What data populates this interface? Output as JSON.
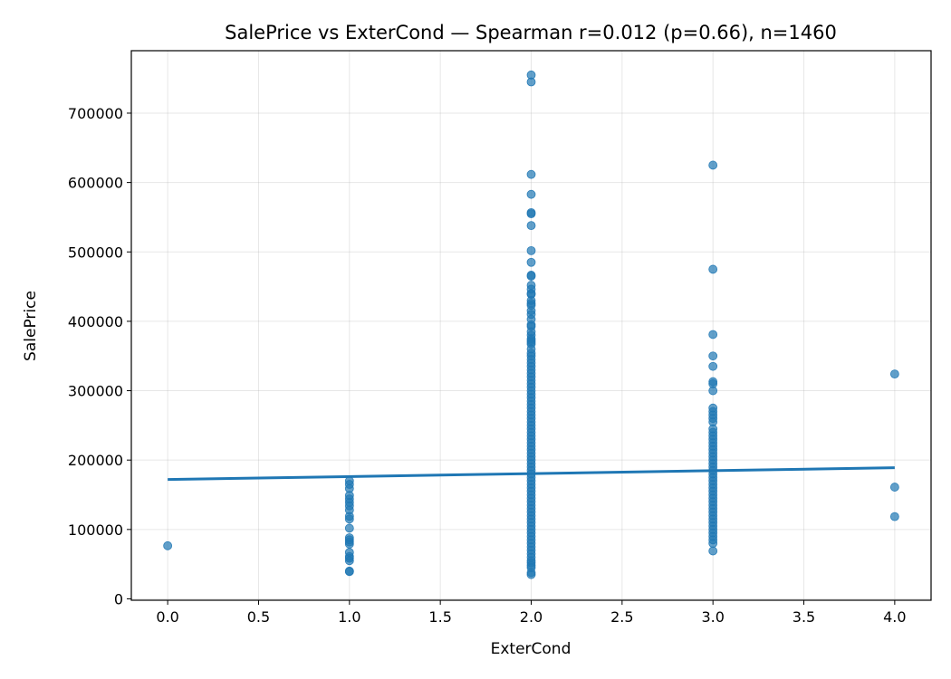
{
  "chart_data": {
    "type": "scatter",
    "title": "SalePrice vs ExterCond — Spearman r=0.012 (p=0.66), n=1460",
    "xlabel": "ExterCond",
    "ylabel": "SalePrice",
    "xlim": [
      -0.2,
      4.2
    ],
    "ylim": [
      -2000,
      790000
    ],
    "xticks": [
      0.0,
      0.5,
      1.0,
      1.5,
      2.0,
      2.5,
      3.0,
      3.5,
      4.0
    ],
    "xtick_labels": [
      "0.0",
      "0.5",
      "1.0",
      "1.5",
      "2.0",
      "2.5",
      "3.0",
      "3.5",
      "4.0"
    ],
    "yticks": [
      0,
      100000,
      200000,
      300000,
      400000,
      500000,
      600000,
      700000
    ],
    "ytick_labels": [
      "0",
      "100000",
      "200000",
      "300000",
      "400000",
      "500000",
      "600000",
      "700000"
    ],
    "grid": true,
    "point_color": "#1f77b4",
    "line_color": "#1f77b4",
    "series": [
      {
        "values": [
          {
            "x": 0,
            "y": 76500
          },
          {
            "x": 1,
            "y": 39300
          },
          {
            "x": 1,
            "y": 40000
          },
          {
            "x": 1,
            "y": 55000
          },
          {
            "x": 1,
            "y": 58500
          },
          {
            "x": 1,
            "y": 61000
          },
          {
            "x": 1,
            "y": 67000
          },
          {
            "x": 1,
            "y": 79000
          },
          {
            "x": 1,
            "y": 82000
          },
          {
            "x": 1,
            "y": 85000
          },
          {
            "x": 1,
            "y": 88000
          },
          {
            "x": 1,
            "y": 101800
          },
          {
            "x": 1,
            "y": 115000
          },
          {
            "x": 1,
            "y": 119000
          },
          {
            "x": 1,
            "y": 128000
          },
          {
            "x": 1,
            "y": 134000
          },
          {
            "x": 1,
            "y": 139000
          },
          {
            "x": 1,
            "y": 144000
          },
          {
            "x": 1,
            "y": 149000
          },
          {
            "x": 1,
            "y": 159000
          },
          {
            "x": 1,
            "y": 165000
          },
          {
            "x": 1,
            "y": 170000
          },
          {
            "x": 2,
            "y": 34900
          },
          {
            "x": 2,
            "y": 37900
          },
          {
            "x": 2,
            "y": 755000
          },
          {
            "x": 2,
            "y": 745000
          },
          {
            "x": 2,
            "y": 611657
          },
          {
            "x": 2,
            "y": 582933
          },
          {
            "x": 2,
            "y": 556581
          },
          {
            "x": 2,
            "y": 555000
          },
          {
            "x": 2,
            "y": 538000
          },
          {
            "x": 2,
            "y": 501837
          },
          {
            "x": 2,
            "y": 485000
          },
          {
            "x": 2,
            "y": 466500
          },
          {
            "x": 2,
            "y": 465000
          },
          {
            "x": 2,
            "y": 451950
          },
          {
            "x": 2,
            "y": 446261
          },
          {
            "x": 2,
            "y": 440000
          },
          {
            "x": 2,
            "y": 438780
          },
          {
            "x": 2,
            "y": 430000
          },
          {
            "x": 2,
            "y": 426000
          },
          {
            "x": 2,
            "y": 423000
          },
          {
            "x": 2,
            "y": 415298
          },
          {
            "x": 2,
            "y": 410000
          },
          {
            "x": 2,
            "y": 402861
          },
          {
            "x": 2,
            "y": 395000
          },
          {
            "x": 2,
            "y": 392500
          },
          {
            "x": 2,
            "y": 385000
          },
          {
            "x": 2,
            "y": 380000
          },
          {
            "x": 2,
            "y": 375000
          },
          {
            "x": 2,
            "y": 372500
          },
          {
            "x": 2,
            "y": 369900
          },
          {
            "x": 2,
            "y": 367294
          },
          {
            "x": 2,
            "y": 360000
          },
          {
            "x": 2,
            "y": 354000
          },
          {
            "x": 2,
            "y": 350000
          },
          {
            "x": 2,
            "y": 345000
          },
          {
            "x": 2,
            "y": 340000
          },
          {
            "x": 2,
            "y": 335000
          },
          {
            "x": 2,
            "y": 330000
          },
          {
            "x": 2,
            "y": 325000
          },
          {
            "x": 2,
            "y": 320000
          },
          {
            "x": 2,
            "y": 315000
          },
          {
            "x": 2,
            "y": 310000
          },
          {
            "x": 2,
            "y": 305000
          },
          {
            "x": 2,
            "y": 300000
          },
          {
            "x": 2,
            "y": 295000
          },
          {
            "x": 2,
            "y": 290000
          },
          {
            "x": 2,
            "y": 285000
          },
          {
            "x": 2,
            "y": 280000
          },
          {
            "x": 2,
            "y": 275000
          },
          {
            "x": 2,
            "y": 270000
          },
          {
            "x": 2,
            "y": 265000
          },
          {
            "x": 2,
            "y": 260000
          },
          {
            "x": 2,
            "y": 255000
          },
          {
            "x": 2,
            "y": 250000
          },
          {
            "x": 2,
            "y": 245000
          },
          {
            "x": 2,
            "y": 240000
          },
          {
            "x": 2,
            "y": 235000
          },
          {
            "x": 2,
            "y": 230000
          },
          {
            "x": 2,
            "y": 225000
          },
          {
            "x": 2,
            "y": 220000
          },
          {
            "x": 2,
            "y": 215000
          },
          {
            "x": 2,
            "y": 210000
          },
          {
            "x": 2,
            "y": 205000
          },
          {
            "x": 2,
            "y": 200000
          },
          {
            "x": 2,
            "y": 195000
          },
          {
            "x": 2,
            "y": 190000
          },
          {
            "x": 2,
            "y": 185000
          },
          {
            "x": 2,
            "y": 180000
          },
          {
            "x": 2,
            "y": 175000
          },
          {
            "x": 2,
            "y": 170000
          },
          {
            "x": 2,
            "y": 165000
          },
          {
            "x": 2,
            "y": 160000
          },
          {
            "x": 2,
            "y": 155000
          },
          {
            "x": 2,
            "y": 150000
          },
          {
            "x": 2,
            "y": 145000
          },
          {
            "x": 2,
            "y": 140000
          },
          {
            "x": 2,
            "y": 135000
          },
          {
            "x": 2,
            "y": 130000
          },
          {
            "x": 2,
            "y": 125000
          },
          {
            "x": 2,
            "y": 120000
          },
          {
            "x": 2,
            "y": 115000
          },
          {
            "x": 2,
            "y": 110000
          },
          {
            "x": 2,
            "y": 105000
          },
          {
            "x": 2,
            "y": 100000
          },
          {
            "x": 2,
            "y": 95000
          },
          {
            "x": 2,
            "y": 90000
          },
          {
            "x": 2,
            "y": 85000
          },
          {
            "x": 2,
            "y": 80000
          },
          {
            "x": 2,
            "y": 75000
          },
          {
            "x": 2,
            "y": 70000
          },
          {
            "x": 2,
            "y": 65000
          },
          {
            "x": 2,
            "y": 60000
          },
          {
            "x": 2,
            "y": 55000
          },
          {
            "x": 2,
            "y": 52000
          },
          {
            "x": 2,
            "y": 48000
          },
          {
            "x": 2,
            "y": 45000
          },
          {
            "x": 3,
            "y": 625000
          },
          {
            "x": 3,
            "y": 475000
          },
          {
            "x": 3,
            "y": 381000
          },
          {
            "x": 3,
            "y": 350000
          },
          {
            "x": 3,
            "y": 335000
          },
          {
            "x": 3,
            "y": 313000
          },
          {
            "x": 3,
            "y": 310000
          },
          {
            "x": 3,
            "y": 300000
          },
          {
            "x": 3,
            "y": 275000
          },
          {
            "x": 3,
            "y": 270000
          },
          {
            "x": 3,
            "y": 265000
          },
          {
            "x": 3,
            "y": 260000
          },
          {
            "x": 3,
            "y": 255000
          },
          {
            "x": 3,
            "y": 245000
          },
          {
            "x": 3,
            "y": 240000
          },
          {
            "x": 3,
            "y": 235000
          },
          {
            "x": 3,
            "y": 230000
          },
          {
            "x": 3,
            "y": 225000
          },
          {
            "x": 3,
            "y": 220000
          },
          {
            "x": 3,
            "y": 215000
          },
          {
            "x": 3,
            "y": 210000
          },
          {
            "x": 3,
            "y": 205000
          },
          {
            "x": 3,
            "y": 200000
          },
          {
            "x": 3,
            "y": 195000
          },
          {
            "x": 3,
            "y": 190000
          },
          {
            "x": 3,
            "y": 185000
          },
          {
            "x": 3,
            "y": 180000
          },
          {
            "x": 3,
            "y": 175000
          },
          {
            "x": 3,
            "y": 170000
          },
          {
            "x": 3,
            "y": 165000
          },
          {
            "x": 3,
            "y": 160000
          },
          {
            "x": 3,
            "y": 155000
          },
          {
            "x": 3,
            "y": 150000
          },
          {
            "x": 3,
            "y": 145000
          },
          {
            "x": 3,
            "y": 140000
          },
          {
            "x": 3,
            "y": 135000
          },
          {
            "x": 3,
            "y": 130000
          },
          {
            "x": 3,
            "y": 125000
          },
          {
            "x": 3,
            "y": 120000
          },
          {
            "x": 3,
            "y": 115000
          },
          {
            "x": 3,
            "y": 110000
          },
          {
            "x": 3,
            "y": 105000
          },
          {
            "x": 3,
            "y": 100000
          },
          {
            "x": 3,
            "y": 95000
          },
          {
            "x": 3,
            "y": 90000
          },
          {
            "x": 3,
            "y": 85000
          },
          {
            "x": 3,
            "y": 80000
          },
          {
            "x": 3,
            "y": 69000
          },
          {
            "x": 4,
            "y": 324000
          },
          {
            "x": 4,
            "y": 161000
          },
          {
            "x": 4,
            "y": 118500
          }
        ]
      }
    ],
    "trend_line": [
      {
        "x": 0,
        "y": 172000
      },
      {
        "x": 4,
        "y": 189000
      }
    ]
  }
}
